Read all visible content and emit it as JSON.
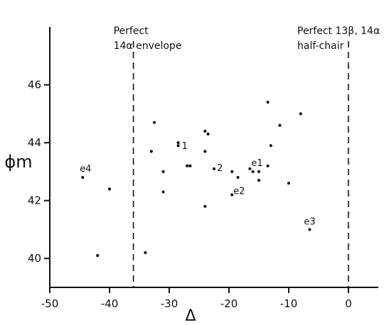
{
  "chart_data": {
    "type": "scatter",
    "xlabel": "Δ",
    "ylabel": "ϕm",
    "xlim": [
      -50,
      5
    ],
    "ylim": [
      39,
      48
    ],
    "x_ticks": [
      -50,
      -40,
      -30,
      -20,
      -10,
      0
    ],
    "x_tick_labels": [
      "-50",
      "-40",
      "-30",
      "-20",
      "-10",
      "0"
    ],
    "y_ticks": [
      40,
      42,
      44,
      46
    ],
    "y_tick_labels": [
      "40",
      "42",
      "44",
      "46"
    ],
    "grid": false,
    "reference_lines": [
      {
        "x": -36,
        "label_lines": [
          "Perfect",
          "14α envelope"
        ]
      },
      {
        "x": 0,
        "label_lines": [
          "Perfect 13β, 14α",
          "half-chair"
        ]
      }
    ],
    "points": [
      {
        "x": -44.5,
        "y": 42.8,
        "label": "e4"
      },
      {
        "x": -40.0,
        "y": 42.4
      },
      {
        "x": -42.0,
        "y": 40.1
      },
      {
        "x": -34.0,
        "y": 40.2
      },
      {
        "x": -33.0,
        "y": 43.7
      },
      {
        "x": -32.5,
        "y": 44.7
      },
      {
        "x": -31.0,
        "y": 43.0
      },
      {
        "x": -31.0,
        "y": 42.3
      },
      {
        "x": -28.5,
        "y": 43.9
      },
      {
        "x": -28.5,
        "y": 44.0
      },
      {
        "x": -27.0,
        "y": 43.2
      },
      {
        "x": -26.5,
        "y": 43.2
      },
      {
        "x": -24.0,
        "y": 44.4
      },
      {
        "x": -23.5,
        "y": 44.3
      },
      {
        "x": -24.0,
        "y": 43.7
      },
      {
        "x": -24.0,
        "y": 41.8
      },
      {
        "x": -22.5,
        "y": 43.1
      },
      {
        "x": -19.5,
        "y": 43.0
      },
      {
        "x": -19.5,
        "y": 42.2
      },
      {
        "x": -18.5,
        "y": 42.8
      },
      {
        "x": -16.5,
        "y": 43.1
      },
      {
        "x": -16.0,
        "y": 43.0
      },
      {
        "x": -15.0,
        "y": 43.0
      },
      {
        "x": -15.0,
        "y": 42.7
      },
      {
        "x": -13.5,
        "y": 45.4
      },
      {
        "x": -13.5,
        "y": 43.2
      },
      {
        "x": -13.0,
        "y": 43.9
      },
      {
        "x": -11.5,
        "y": 44.6
      },
      {
        "x": -10.0,
        "y": 42.6
      },
      {
        "x": -8.0,
        "y": 45.0
      },
      {
        "x": -6.5,
        "y": 41.0
      }
    ],
    "point_labels": [
      {
        "text": "1",
        "x": -28.5,
        "y": 43.9
      },
      {
        "text": "2",
        "x": -22.5,
        "y": 43.1
      },
      {
        "text": "e1",
        "x": -16.5,
        "y": 43.1
      },
      {
        "text": "e2",
        "x": -19.5,
        "y": 42.2
      },
      {
        "text": "e3",
        "x": -6.5,
        "y": 41.0
      },
      {
        "text": "e4",
        "x": -44.5,
        "y": 42.8
      }
    ]
  }
}
